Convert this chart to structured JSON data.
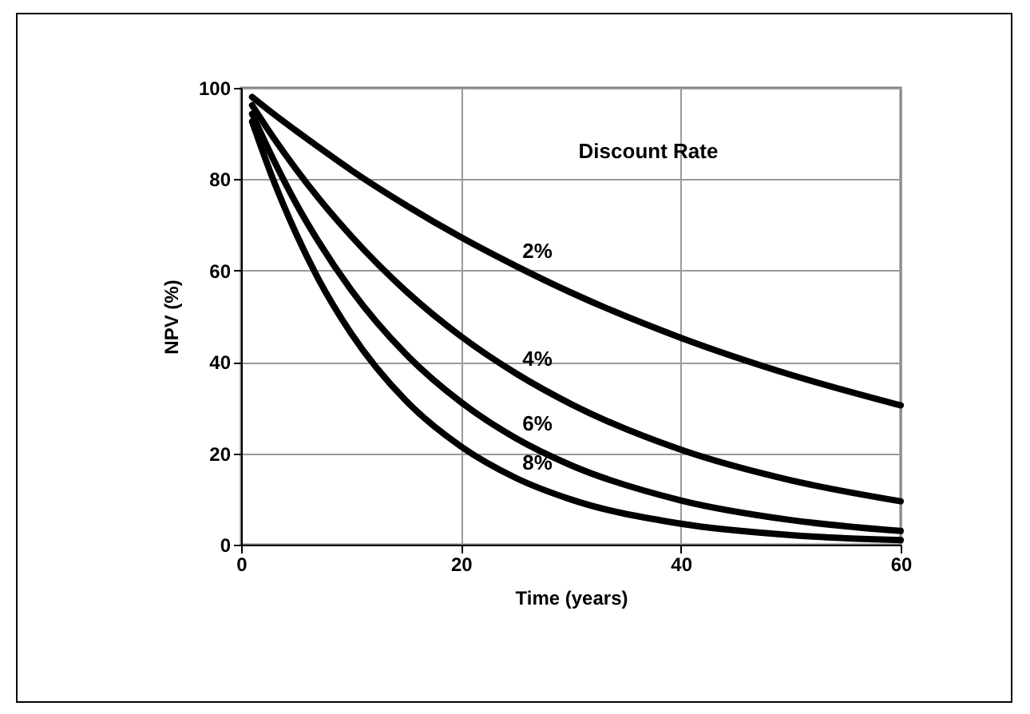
{
  "chart_data": {
    "type": "line",
    "xlabel": "Time (years)",
    "ylabel": "NPV (%)",
    "legend_title": "Discount Rate",
    "x": [
      1,
      3,
      5,
      7,
      10,
      15,
      20,
      25,
      30,
      40,
      50,
      60
    ],
    "series": [
      {
        "name": "2%",
        "color": "#000000",
        "values": [
          98.0,
          94.2,
          90.6,
          87.1,
          82.0,
          74.3,
          67.3,
          61.0,
          55.2,
          45.3,
          37.2,
          30.5
        ]
      },
      {
        "name": "4%",
        "color": "#000000",
        "values": [
          96.2,
          88.9,
          82.2,
          76.0,
          67.6,
          55.5,
          45.6,
          37.5,
          30.8,
          20.8,
          14.1,
          9.5
        ]
      },
      {
        "name": "6%",
        "color": "#000000",
        "values": [
          94.3,
          84.0,
          74.7,
          66.5,
          55.8,
          41.7,
          31.2,
          23.3,
          17.4,
          9.7,
          5.4,
          3.0
        ]
      },
      {
        "name": "8%",
        "color": "#000000",
        "values": [
          92.6,
          79.4,
          68.1,
          58.3,
          46.3,
          31.5,
          21.5,
          14.6,
          9.9,
          4.6,
          2.1,
          1.0
        ]
      }
    ],
    "xlim": [
      0,
      60
    ],
    "xticks": [
      0,
      20,
      40,
      60
    ],
    "ylim": [
      0,
      100
    ],
    "yticks": [
      0,
      20,
      40,
      60,
      80,
      100
    ],
    "grid": true,
    "marker": "none",
    "line_style": "solid"
  }
}
